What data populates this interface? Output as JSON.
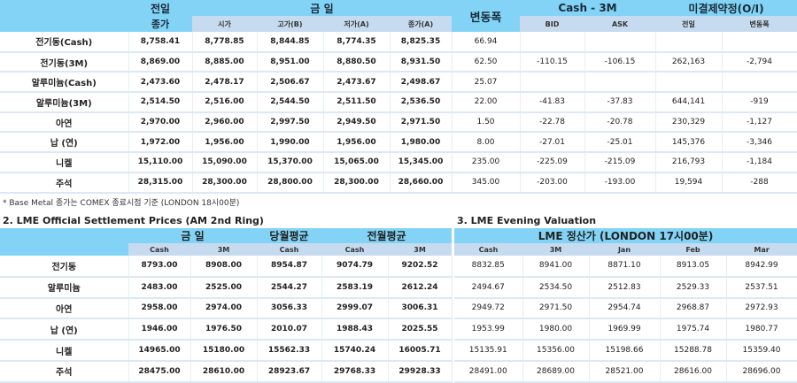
{
  "top": {
    "headers": {
      "prev_close_1": "전일",
      "prev_close_2": "종가",
      "today": "금     일",
      "open": "시가",
      "high": "고가(B)",
      "low": "저가(A)",
      "close": "종가(A)",
      "change": "변동폭",
      "cash3m": "Cash - 3M",
      "bid": "BID",
      "ask": "ASK",
      "oi": "미결제약정(O/I)",
      "oi_prev": "전일",
      "oi_change": "변동폭"
    },
    "rows": [
      {
        "name": "전기동(Cash)",
        "prev": "8,758.41",
        "open": "8,778.85",
        "high": "8,844.85",
        "low": "8,774.35",
        "close": "8,825.35",
        "change": "66.94",
        "bid": "",
        "ask": "",
        "oi": "",
        "oi_change": ""
      },
      {
        "name": "전기동(3M)",
        "prev": "8,869.00",
        "open": "8,885.00",
        "high": "8,951.00",
        "low": "8,880.50",
        "close": "8,931.50",
        "change": "62.50",
        "bid": "-110.15",
        "ask": "-106.15",
        "oi": "262,163",
        "oi_change": "-2,794"
      },
      {
        "name": "알루미늄(Cash)",
        "prev": "2,473.60",
        "open": "2,478.17",
        "high": "2,506.67",
        "low": "2,473.67",
        "close": "2,498.67",
        "change": "25.07",
        "bid": "",
        "ask": "",
        "oi": "",
        "oi_change": ""
      },
      {
        "name": "알루미늄(3M)",
        "prev": "2,514.50",
        "open": "2,516.00",
        "high": "2,544.50",
        "low": "2,511.50",
        "close": "2,536.50",
        "change": "22.00",
        "bid": "-41.83",
        "ask": "-37.83",
        "oi": "644,141",
        "oi_change": "-919"
      },
      {
        "name": "아연",
        "prev": "2,970.00",
        "open": "2,960.00",
        "high": "2,997.50",
        "low": "2,949.50",
        "close": "2,971.50",
        "change": "1.50",
        "bid": "-22.78",
        "ask": "-20.78",
        "oi": "230,329",
        "oi_change": "-1,127"
      },
      {
        "name": "납 (연)",
        "prev": "1,972.00",
        "open": "1,956.00",
        "high": "1,990.00",
        "low": "1,956.00",
        "close": "1,980.00",
        "change": "8.00",
        "bid": "-27.01",
        "ask": "-25.01",
        "oi": "145,376",
        "oi_change": "-3,346"
      },
      {
        "name": "니켈",
        "prev": "15,110.00",
        "open": "15,090.00",
        "high": "15,370.00",
        "low": "15,065.00",
        "close": "15,345.00",
        "change": "235.00",
        "bid": "-225.09",
        "ask": "-215.09",
        "oi": "216,793",
        "oi_change": "-1,184"
      },
      {
        "name": "주석",
        "prev": "28,315.00",
        "open": "28,300.00",
        "high": "28,800.00",
        "low": "28,300.00",
        "close": "28,660.00",
        "change": "345.00",
        "bid": "-203.00",
        "ask": "-193.00",
        "oi": "19,594",
        "oi_change": "-288"
      }
    ]
  },
  "note": "* Base Metal 종가는 COMEX 종료시점 기준 (LONDON 18시00분)",
  "settlement": {
    "title": "2. LME Official Settlement Prices (AM 2nd Ring)",
    "headers": {
      "today": "금     일",
      "this_month": "당월평균",
      "last_month": "전월평균",
      "cash": "Cash",
      "m3": "3M"
    },
    "rows": [
      {
        "name": "전기동",
        "cash": "8793.00",
        "m3": "8908.00",
        "avg_cash": "8954.87",
        "prev_cash": "9074.79",
        "prev_3m": "9202.52"
      },
      {
        "name": "알루미늄",
        "cash": "2483.00",
        "m3": "2525.00",
        "avg_cash": "2544.27",
        "prev_cash": "2583.19",
        "prev_3m": "2612.24"
      },
      {
        "name": "아연",
        "cash": "2958.00",
        "m3": "2974.00",
        "avg_cash": "3056.33",
        "prev_cash": "2999.07",
        "prev_3m": "3006.31"
      },
      {
        "name": "납 (연)",
        "cash": "1946.00",
        "m3": "1976.50",
        "avg_cash": "2010.07",
        "prev_cash": "1988.43",
        "prev_3m": "2025.55"
      },
      {
        "name": "니켈",
        "cash": "14965.00",
        "m3": "15180.00",
        "avg_cash": "15562.33",
        "prev_cash": "15740.24",
        "prev_3m": "16005.71"
      },
      {
        "name": "주석",
        "cash": "28475.00",
        "m3": "28610.00",
        "avg_cash": "28923.67",
        "prev_cash": "29768.33",
        "prev_3m": "29928.33"
      }
    ]
  },
  "evening": {
    "title": "3. LME Evening Valuation",
    "header": "LME 정산가 (LONDON 17시00분)",
    "cols": [
      "Cash",
      "3M",
      "Jan",
      "Feb",
      "Mar"
    ],
    "rows": [
      [
        "8832.85",
        "8941.00",
        "8871.10",
        "8913.05",
        "8942.99"
      ],
      [
        "2494.67",
        "2534.50",
        "2512.83",
        "2529.33",
        "2537.51"
      ],
      [
        "2949.72",
        "2971.50",
        "2954.74",
        "2968.87",
        "2972.93"
      ],
      [
        "1953.99",
        "1980.00",
        "1969.99",
        "1975.74",
        "1980.77"
      ],
      [
        "15135.91",
        "15356.00",
        "15198.66",
        "15288.78",
        "15359.40"
      ],
      [
        "28491.00",
        "28689.00",
        "28521.00",
        "28616.00",
        "28696.00"
      ]
    ]
  },
  "colors": {
    "header": "#82d3f5",
    "subheader": "#c6dbef",
    "row_line": "#dce8f4"
  }
}
